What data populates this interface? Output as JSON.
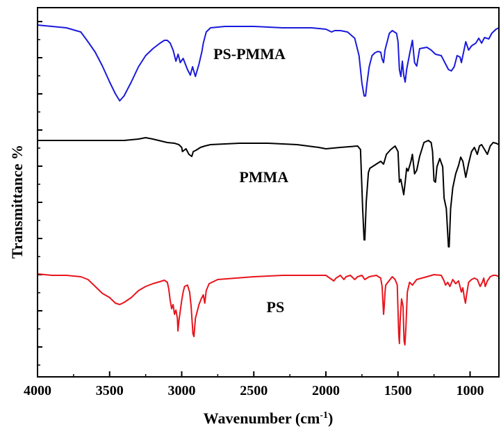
{
  "chart_data": {
    "type": "line",
    "xlabel_main": "Wavenumber (cm",
    "xlabel_sup": "-1",
    "xlabel_close": ")",
    "ylabel": "Transmittance  %",
    "xlim": [
      4000,
      800
    ],
    "x_reversed": true,
    "yticks_labeled": false,
    "xticks": [
      4000,
      3500,
      3000,
      2500,
      2000,
      1500,
      1000
    ],
    "xtick_labels": [
      "4000",
      "3500",
      "3000",
      "2500",
      "2000",
      "1500",
      "1000"
    ],
    "series": [
      {
        "name": "PS-PMMA",
        "color": "#1a1adb",
        "points": [
          [
            4000,
            36
          ],
          [
            3900,
            38
          ],
          [
            3800,
            40
          ],
          [
            3700,
            46
          ],
          [
            3650,
            60
          ],
          [
            3600,
            75
          ],
          [
            3550,
            95
          ],
          [
            3500,
            118
          ],
          [
            3460,
            135
          ],
          [
            3430,
            145
          ],
          [
            3400,
            138
          ],
          [
            3350,
            118
          ],
          [
            3300,
            96
          ],
          [
            3250,
            80
          ],
          [
            3200,
            70
          ],
          [
            3150,
            62
          ],
          [
            3120,
            58
          ],
          [
            3100,
            58
          ],
          [
            3080,
            62
          ],
          [
            3060,
            72
          ],
          [
            3040,
            88
          ],
          [
            3025,
            78
          ],
          [
            3010,
            90
          ],
          [
            2990,
            84
          ],
          [
            2960,
            100
          ],
          [
            2940,
            108
          ],
          [
            2925,
            96
          ],
          [
            2905,
            110
          ],
          [
            2880,
            92
          ],
          [
            2860,
            74
          ],
          [
            2850,
            62
          ],
          [
            2830,
            46
          ],
          [
            2800,
            40
          ],
          [
            2700,
            38
          ],
          [
            2500,
            38
          ],
          [
            2300,
            40
          ],
          [
            2100,
            40
          ],
          [
            2000,
            42
          ],
          [
            1960,
            46
          ],
          [
            1940,
            44
          ],
          [
            1900,
            44
          ],
          [
            1850,
            46
          ],
          [
            1800,
            55
          ],
          [
            1770,
            80
          ],
          [
            1750,
            120
          ],
          [
            1735,
            138
          ],
          [
            1725,
            138
          ],
          [
            1715,
            120
          ],
          [
            1700,
            96
          ],
          [
            1680,
            80
          ],
          [
            1660,
            76
          ],
          [
            1640,
            74
          ],
          [
            1620,
            75
          ],
          [
            1610,
            85
          ],
          [
            1600,
            90
          ],
          [
            1590,
            72
          ],
          [
            1560,
            48
          ],
          [
            1540,
            44
          ],
          [
            1510,
            48
          ],
          [
            1500,
            60
          ],
          [
            1490,
            100
          ],
          [
            1480,
            110
          ],
          [
            1470,
            88
          ],
          [
            1460,
            108
          ],
          [
            1450,
            118
          ],
          [
            1440,
            100
          ],
          [
            1420,
            78
          ],
          [
            1400,
            58
          ],
          [
            1385,
            90
          ],
          [
            1370,
            95
          ],
          [
            1350,
            70
          ],
          [
            1300,
            68
          ],
          [
            1270,
            72
          ],
          [
            1240,
            78
          ],
          [
            1200,
            80
          ],
          [
            1170,
            92
          ],
          [
            1150,
            100
          ],
          [
            1130,
            102
          ],
          [
            1110,
            96
          ],
          [
            1090,
            80
          ],
          [
            1070,
            82
          ],
          [
            1060,
            90
          ],
          [
            1040,
            70
          ],
          [
            1030,
            60
          ],
          [
            1010,
            72
          ],
          [
            990,
            66
          ],
          [
            960,
            62
          ],
          [
            940,
            55
          ],
          [
            920,
            62
          ],
          [
            900,
            54
          ],
          [
            870,
            56
          ],
          [
            850,
            48
          ],
          [
            820,
            42
          ],
          [
            800,
            40
          ]
        ]
      },
      {
        "name": "PMMA",
        "color": "#000000",
        "points": [
          [
            4000,
            202
          ],
          [
            3800,
            202
          ],
          [
            3600,
            202
          ],
          [
            3500,
            202
          ],
          [
            3400,
            202
          ],
          [
            3300,
            200
          ],
          [
            3250,
            198
          ],
          [
            3200,
            200
          ],
          [
            3100,
            205
          ],
          [
            3050,
            206
          ],
          [
            3020,
            208
          ],
          [
            3000,
            212
          ],
          [
            2995,
            218
          ],
          [
            2970,
            214
          ],
          [
            2950,
            222
          ],
          [
            2930,
            225
          ],
          [
            2920,
            218
          ],
          [
            2900,
            216
          ],
          [
            2870,
            212
          ],
          [
            2840,
            210
          ],
          [
            2800,
            208
          ],
          [
            2600,
            206
          ],
          [
            2400,
            206
          ],
          [
            2200,
            208
          ],
          [
            2050,
            212
          ],
          [
            2000,
            214
          ],
          [
            1900,
            212
          ],
          [
            1780,
            210
          ],
          [
            1760,
            215
          ],
          [
            1745,
            300
          ],
          [
            1735,
            345
          ],
          [
            1730,
            345
          ],
          [
            1720,
            290
          ],
          [
            1705,
            248
          ],
          [
            1695,
            242
          ],
          [
            1680,
            240
          ],
          [
            1650,
            236
          ],
          [
            1620,
            232
          ],
          [
            1600,
            236
          ],
          [
            1580,
            222
          ],
          [
            1550,
            215
          ],
          [
            1520,
            210
          ],
          [
            1500,
            218
          ],
          [
            1490,
            262
          ],
          [
            1480,
            258
          ],
          [
            1460,
            280
          ],
          [
            1450,
            262
          ],
          [
            1440,
            242
          ],
          [
            1430,
            246
          ],
          [
            1410,
            232
          ],
          [
            1400,
            222
          ],
          [
            1385,
            250
          ],
          [
            1370,
            245
          ],
          [
            1350,
            225
          ],
          [
            1320,
            205
          ],
          [
            1290,
            202
          ],
          [
            1270,
            205
          ],
          [
            1260,
            218
          ],
          [
            1250,
            260
          ],
          [
            1240,
            262
          ],
          [
            1230,
            240
          ],
          [
            1210,
            228
          ],
          [
            1190,
            240
          ],
          [
            1180,
            285
          ],
          [
            1165,
            300
          ],
          [
            1150,
            355
          ],
          [
            1145,
            355
          ],
          [
            1135,
            300
          ],
          [
            1120,
            270
          ],
          [
            1100,
            250
          ],
          [
            1080,
            238
          ],
          [
            1065,
            226
          ],
          [
            1050,
            232
          ],
          [
            1030,
            255
          ],
          [
            1010,
            235
          ],
          [
            990,
            218
          ],
          [
            970,
            212
          ],
          [
            950,
            222
          ],
          [
            935,
            210
          ],
          [
            920,
            208
          ],
          [
            900,
            215
          ],
          [
            880,
            222
          ],
          [
            860,
            210
          ],
          [
            840,
            205
          ],
          [
            820,
            206
          ],
          [
            800,
            208
          ]
        ]
      },
      {
        "name": "PS",
        "color": "#e8141c",
        "points": [
          [
            4000,
            394
          ],
          [
            3900,
            396
          ],
          [
            3800,
            396
          ],
          [
            3700,
            398
          ],
          [
            3650,
            402
          ],
          [
            3600,
            412
          ],
          [
            3550,
            422
          ],
          [
            3500,
            428
          ],
          [
            3460,
            436
          ],
          [
            3430,
            438
          ],
          [
            3400,
            435
          ],
          [
            3350,
            428
          ],
          [
            3300,
            418
          ],
          [
            3250,
            412
          ],
          [
            3200,
            408
          ],
          [
            3150,
            405
          ],
          [
            3120,
            403
          ],
          [
            3100,
            406
          ],
          [
            3090,
            415
          ],
          [
            3080,
            432
          ],
          [
            3070,
            444
          ],
          [
            3060,
            438
          ],
          [
            3050,
            452
          ],
          [
            3040,
            446
          ],
          [
            3030,
            458
          ],
          [
            3026,
            476
          ],
          [
            3020,
            462
          ],
          [
            3000,
            432
          ],
          [
            2990,
            420
          ],
          [
            2980,
            412
          ],
          [
            2960,
            410
          ],
          [
            2945,
            420
          ],
          [
            2935,
            440
          ],
          [
            2922,
            480
          ],
          [
            2915,
            484
          ],
          [
            2905,
            458
          ],
          [
            2880,
            438
          ],
          [
            2865,
            430
          ],
          [
            2850,
            424
          ],
          [
            2840,
            436
          ],
          [
            2830,
            418
          ],
          [
            2810,
            408
          ],
          [
            2750,
            402
          ],
          [
            2500,
            398
          ],
          [
            2300,
            396
          ],
          [
            2100,
            396
          ],
          [
            2000,
            396
          ],
          [
            1945,
            404
          ],
          [
            1930,
            400
          ],
          [
            1900,
            396
          ],
          [
            1875,
            402
          ],
          [
            1860,
            398
          ],
          [
            1830,
            396
          ],
          [
            1800,
            402
          ],
          [
            1780,
            398
          ],
          [
            1750,
            396
          ],
          [
            1730,
            402
          ],
          [
            1700,
            398
          ],
          [
            1650,
            396
          ],
          [
            1620,
            400
          ],
          [
            1610,
            412
          ],
          [
            1600,
            452
          ],
          [
            1595,
            440
          ],
          [
            1590,
            420
          ],
          [
            1585,
            410
          ],
          [
            1570,
            406
          ],
          [
            1540,
            398
          ],
          [
            1520,
            402
          ],
          [
            1505,
            410
          ],
          [
            1495,
            480
          ],
          [
            1490,
            494
          ],
          [
            1485,
            460
          ],
          [
            1475,
            430
          ],
          [
            1465,
            440
          ],
          [
            1458,
            490
          ],
          [
            1452,
            496
          ],
          [
            1445,
            470
          ],
          [
            1435,
            420
          ],
          [
            1420,
            406
          ],
          [
            1400,
            410
          ],
          [
            1370,
            402
          ],
          [
            1300,
            398
          ],
          [
            1250,
            395
          ],
          [
            1200,
            396
          ],
          [
            1180,
            404
          ],
          [
            1170,
            410
          ],
          [
            1155,
            406
          ],
          [
            1140,
            412
          ],
          [
            1120,
            402
          ],
          [
            1100,
            408
          ],
          [
            1080,
            404
          ],
          [
            1070,
            412
          ],
          [
            1060,
            420
          ],
          [
            1050,
            414
          ],
          [
            1040,
            428
          ],
          [
            1032,
            436
          ],
          [
            1025,
            425
          ],
          [
            1010,
            406
          ],
          [
            990,
            402
          ],
          [
            970,
            400
          ],
          [
            950,
            402
          ],
          [
            930,
            412
          ],
          [
            915,
            406
          ],
          [
            905,
            400
          ],
          [
            895,
            412
          ],
          [
            880,
            404
          ],
          [
            860,
            398
          ],
          [
            840,
            396
          ],
          [
            820,
            396
          ],
          [
            800,
            398
          ]
        ]
      }
    ],
    "annotations": [
      {
        "text": "PS-PMMA",
        "x": 2530,
        "y": 77
      },
      {
        "text": "PMMA",
        "x": 2430,
        "y": 254
      },
      {
        "text": "PS",
        "x": 2350,
        "y": 441
      }
    ]
  }
}
